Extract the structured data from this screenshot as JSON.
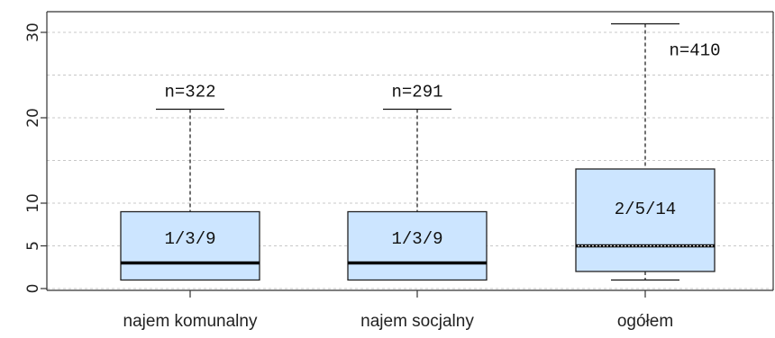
{
  "chart_data": {
    "type": "box",
    "title": "",
    "xlabel": "",
    "ylabel": "",
    "ylim": [
      0,
      31
    ],
    "yticks": [
      0,
      5,
      10,
      20,
      30
    ],
    "grid_y": [
      0,
      5,
      10,
      15,
      20,
      25,
      30
    ],
    "grid": true,
    "categories": [
      "najem komunalny",
      "najem socjalny",
      "ogółem"
    ],
    "boxes": [
      {
        "category": "najem komunalny",
        "whisker_low": 1,
        "q1": 1,
        "median": 3,
        "q3": 9,
        "whisker_high": 21,
        "n_label": "n=322",
        "box_label": "1/3/9"
      },
      {
        "category": "najem socjalny",
        "whisker_low": 1,
        "q1": 1,
        "median": 3,
        "q3": 9,
        "whisker_high": 21,
        "n_label": "n=291",
        "box_label": "1/3/9"
      },
      {
        "category": "ogółem",
        "whisker_low": 1,
        "q1": 2,
        "median": 5,
        "q3": 14,
        "whisker_high": 31,
        "n_label": "n=410",
        "box_label": "2/5/14"
      }
    ],
    "colors": {
      "box_fill": "#cce5ff",
      "box_edge": "#222222",
      "grid": "#c8c8c8"
    }
  }
}
